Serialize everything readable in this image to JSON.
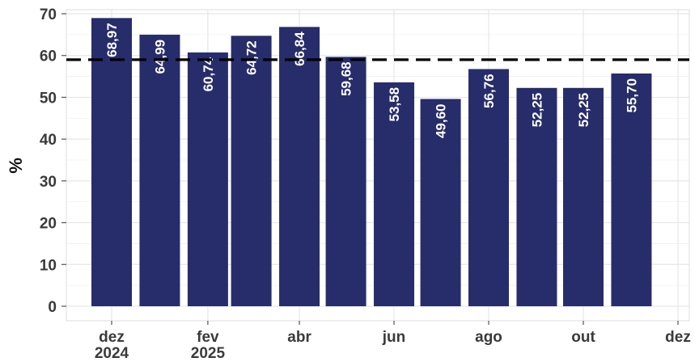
{
  "chart_data": {
    "type": "bar",
    "ylabel": "%",
    "xlabel": "",
    "ylim": [
      0,
      70
    ],
    "yticks": [
      0,
      10,
      20,
      30,
      40,
      50,
      60,
      70
    ],
    "grid": true,
    "reference_line": {
      "value": 59,
      "style": "dashed",
      "color": "#000000"
    },
    "x_domain": [
      "2024-11-15",
      "2025-12-01"
    ],
    "x_ticks": [
      {
        "date": "2024-12-01",
        "label": [
          "dez",
          "2024"
        ]
      },
      {
        "date": "2025-02-01",
        "label": [
          "fev",
          "2025"
        ]
      },
      {
        "date": "2025-04-01",
        "label": [
          "abr"
        ]
      },
      {
        "date": "2025-06-01",
        "label": [
          "jun"
        ]
      },
      {
        "date": "2025-08-01",
        "label": [
          "ago"
        ]
      },
      {
        "date": "2025-10-01",
        "label": [
          "out"
        ]
      },
      {
        "date": "2025-12-01",
        "label": [
          "dez"
        ]
      }
    ],
    "bars": [
      {
        "date": "2024-12-01",
        "value": 68.97,
        "label": "68,97"
      },
      {
        "date": "2025-01-01",
        "value": 64.99,
        "label": "64,99"
      },
      {
        "date": "2025-02-01",
        "value": 60.74,
        "label": "60,74"
      },
      {
        "date": "2025-03-01",
        "value": 64.72,
        "label": "64,72"
      },
      {
        "date": "2025-04-01",
        "value": 66.84,
        "label": "66,84"
      },
      {
        "date": "2025-05-01",
        "value": 59.68,
        "label": "59,68"
      },
      {
        "date": "2025-06-01",
        "value": 53.58,
        "label": "53,58"
      },
      {
        "date": "2025-07-01",
        "value": 49.6,
        "label": "49,60"
      },
      {
        "date": "2025-08-01",
        "value": 56.76,
        "label": "56,76"
      },
      {
        "date": "2025-09-01",
        "value": 52.25,
        "label": "52,25"
      },
      {
        "date": "2025-10-01",
        "value": 52.25,
        "label": "52,25"
      },
      {
        "date": "2025-11-01",
        "value": 55.7,
        "label": "55,70"
      }
    ],
    "colors": {
      "bar": "#272d6b",
      "grid": "#e6e6e6",
      "axis_text": "#3a3a3a",
      "reference": "#000000"
    }
  }
}
